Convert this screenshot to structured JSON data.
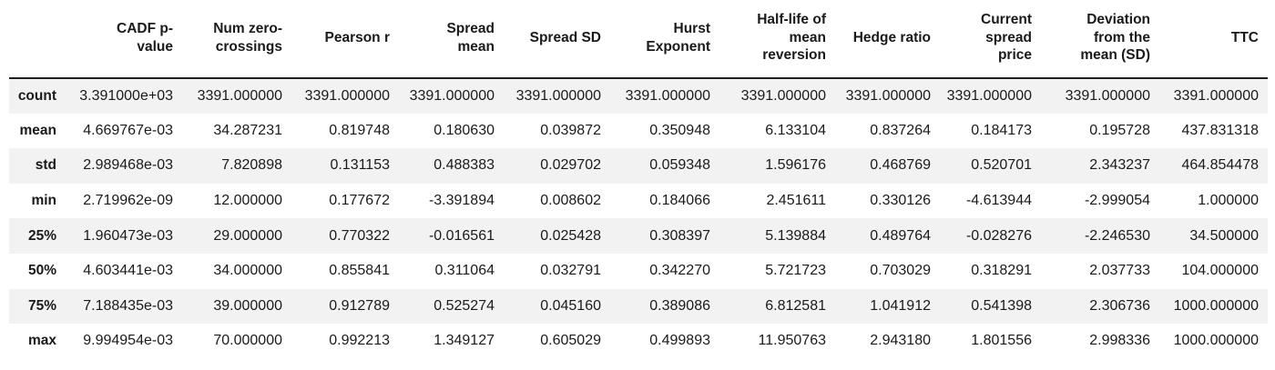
{
  "chart_data": {
    "type": "table",
    "title": "Summary statistics table (pandas describe style)",
    "columns": [
      "CADF p-value",
      "Num zero-crossings",
      "Pearson r",
      "Spread mean",
      "Spread SD",
      "Hurst Exponent",
      "Half-life of mean reversion",
      "Hedge ratio",
      "Current spread price",
      "Deviation from the mean (SD)",
      "TTC"
    ],
    "column_display": [
      "CADF p-\nvalue",
      "Num zero-\ncrossings",
      "Pearson r",
      "Spread\nmean",
      "Spread SD",
      "Hurst\nExponent",
      "Half-life of\nmean\nreversion",
      "Hedge ratio",
      "Current\nspread\nprice",
      "Deviation\nfrom the\nmean (SD)",
      "TTC"
    ],
    "index": [
      "count",
      "mean",
      "std",
      "min",
      "25%",
      "50%",
      "75%",
      "max"
    ],
    "rows": [
      [
        "3.391000e+03",
        "3391.000000",
        "3391.000000",
        "3391.000000",
        "3391.000000",
        "3391.000000",
        "3391.000000",
        "3391.000000",
        "3391.000000",
        "3391.000000",
        "3391.000000"
      ],
      [
        "4.669767e-03",
        "34.287231",
        "0.819748",
        "0.180630",
        "0.039872",
        "0.350948",
        "6.133104",
        "0.837264",
        "0.184173",
        "0.195728",
        "437.831318"
      ],
      [
        "2.989468e-03",
        "7.820898",
        "0.131153",
        "0.488383",
        "0.029702",
        "0.059348",
        "1.596176",
        "0.468769",
        "0.520701",
        "2.343237",
        "464.854478"
      ],
      [
        "2.719962e-09",
        "12.000000",
        "0.177672",
        "-3.391894",
        "0.008602",
        "0.184066",
        "2.451611",
        "0.330126",
        "-4.613944",
        "-2.999054",
        "1.000000"
      ],
      [
        "1.960473e-03",
        "29.000000",
        "0.770322",
        "-0.016561",
        "0.025428",
        "0.308397",
        "5.139884",
        "0.489764",
        "-0.028276",
        "-2.246530",
        "34.500000"
      ],
      [
        "4.603441e-03",
        "34.000000",
        "0.855841",
        "0.311064",
        "0.032791",
        "0.342270",
        "5.721723",
        "0.703029",
        "0.318291",
        "2.037733",
        "104.000000"
      ],
      [
        "7.188435e-03",
        "39.000000",
        "0.912789",
        "0.525274",
        "0.045160",
        "0.389086",
        "6.812581",
        "1.041912",
        "0.541398",
        "2.306736",
        "1000.000000"
      ],
      [
        "9.994954e-03",
        "70.000000",
        "0.992213",
        "1.349127",
        "0.605029",
        "0.499893",
        "11.950763",
        "2.943180",
        "1.801556",
        "2.998336",
        "1000.000000"
      ]
    ],
    "layout_hints": {
      "striped_rows": [
        "count",
        "std",
        "25%",
        "75%"
      ],
      "header_rule": "bottom"
    }
  },
  "colors": {
    "stripe": "#f2f2f2",
    "header_rule": "#1f1f1f",
    "text": "#1a1a1a",
    "background": "#ffffff"
  }
}
